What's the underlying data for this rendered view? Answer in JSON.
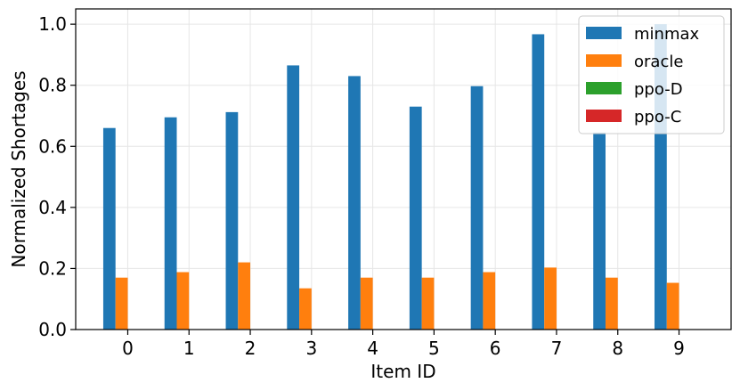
{
  "chart_data": {
    "type": "bar",
    "title": "",
    "xlabel": "Item ID",
    "ylabel": "Normalized Shortages",
    "categories": [
      "0",
      "1",
      "2",
      "3",
      "4",
      "5",
      "6",
      "7",
      "8",
      "9"
    ],
    "ylim": [
      0,
      1.05
    ],
    "yticks": [
      "0.0",
      "0.2",
      "0.4",
      "0.6",
      "0.8",
      "1.0"
    ],
    "grid": true,
    "legend_position": "top-right",
    "series": [
      {
        "name": "minmax",
        "color": "#1f77b4",
        "values": [
          0.66,
          0.695,
          0.712,
          0.865,
          0.83,
          0.73,
          0.797,
          0.967,
          0.645,
          1.0
        ]
      },
      {
        "name": "oracle",
        "color": "#ff7f0e",
        "values": [
          0.17,
          0.188,
          0.22,
          0.135,
          0.17,
          0.17,
          0.188,
          0.203,
          0.17,
          0.153
        ]
      },
      {
        "name": "ppo-D",
        "color": "#2ca02c",
        "values": [
          0,
          0,
          0,
          0,
          0,
          0,
          0,
          0,
          0,
          0
        ]
      },
      {
        "name": "ppo-C",
        "color": "#d62728",
        "values": [
          0,
          0,
          0,
          0,
          0,
          0,
          0,
          0,
          0,
          0
        ]
      }
    ]
  }
}
